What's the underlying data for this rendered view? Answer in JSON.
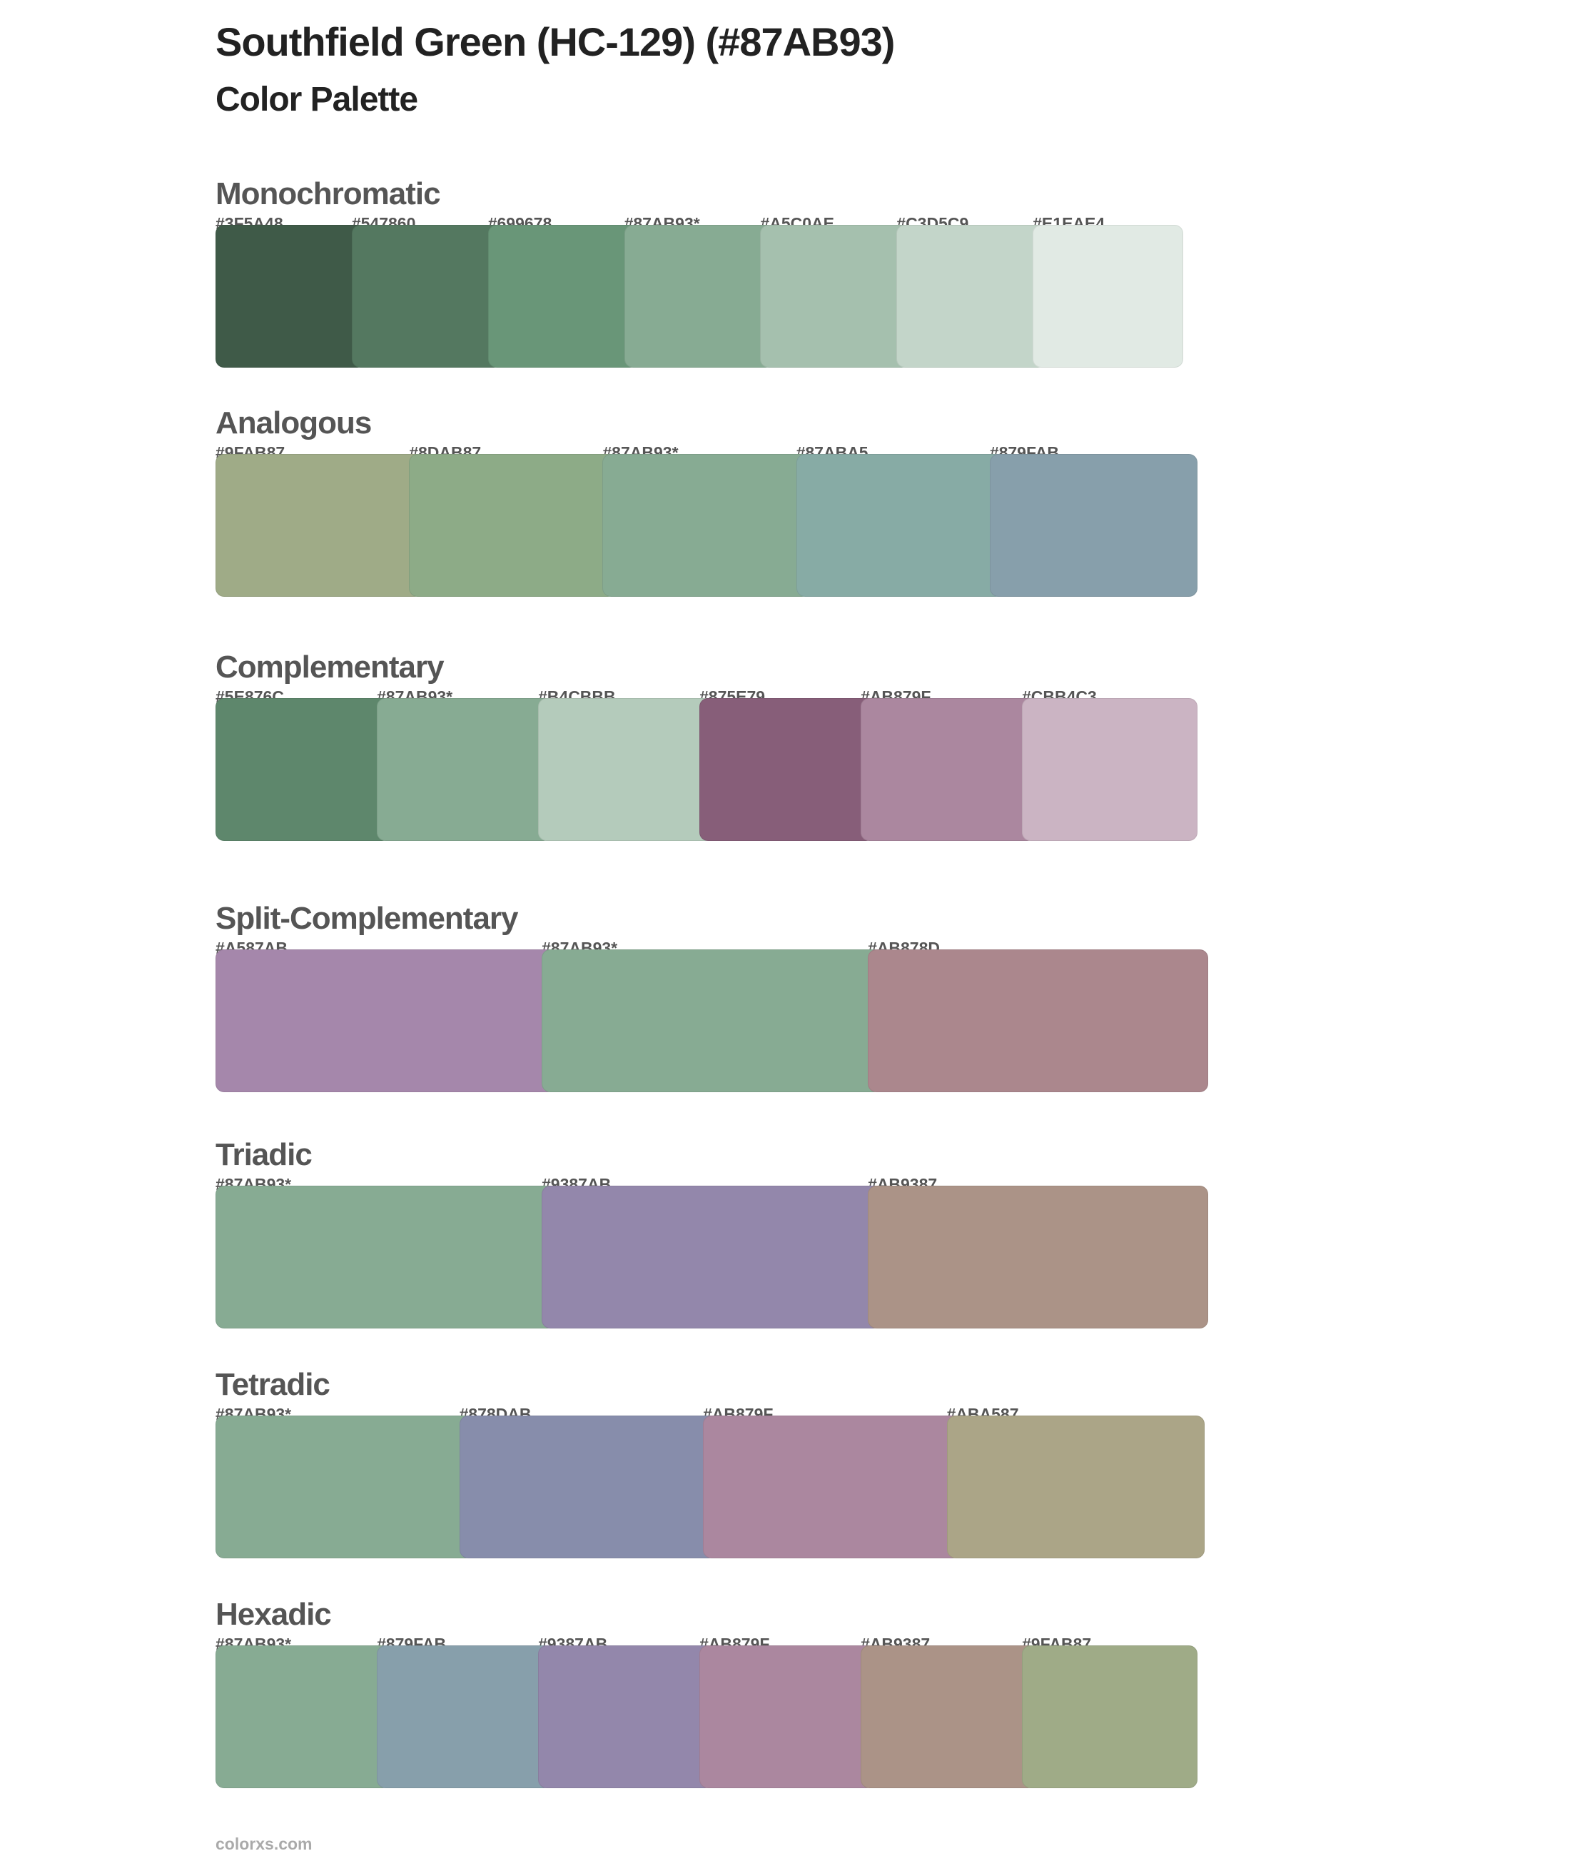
{
  "header": {
    "title": "Southfield Green (HC-129) (#87AB93)",
    "subtitle": "Color Palette"
  },
  "sections": [
    {
      "name": "Monochromatic",
      "colors": [
        {
          "label": "#3F5A48",
          "hex": "#3F5A48"
        },
        {
          "label": "#547860",
          "hex": "#547860"
        },
        {
          "label": "#699678",
          "hex": "#699678"
        },
        {
          "label": "#87AB93*",
          "hex": "#87AB93"
        },
        {
          "label": "#A5C0AE",
          "hex": "#A5C0AE"
        },
        {
          "label": "#C3D5C9",
          "hex": "#C3D5C9"
        },
        {
          "label": "#E1EAE4",
          "hex": "#E1EAE4"
        }
      ]
    },
    {
      "name": "Analogous",
      "colors": [
        {
          "label": "#9FAB87",
          "hex": "#9FAB87"
        },
        {
          "label": "#8DAB87",
          "hex": "#8DAB87"
        },
        {
          "label": "#87AB93*",
          "hex": "#87AB93"
        },
        {
          "label": "#87ABA5",
          "hex": "#87ABA5"
        },
        {
          "label": "#879FAB",
          "hex": "#879FAB"
        }
      ]
    },
    {
      "name": "Complementary",
      "colors": [
        {
          "label": "#5E876C",
          "hex": "#5E876C"
        },
        {
          "label": "#87AB93*",
          "hex": "#87AB93"
        },
        {
          "label": "#B4CBBB",
          "hex": "#B4CBBB"
        },
        {
          "label": "#875E79",
          "hex": "#875E79"
        },
        {
          "label": "#AB879F",
          "hex": "#AB879F"
        },
        {
          "label": "#CBB4C3",
          "hex": "#CBB4C3"
        }
      ]
    },
    {
      "name": "Split-Complementary",
      "colors": [
        {
          "label": "#A587AB",
          "hex": "#A587AB"
        },
        {
          "label": "#87AB93*",
          "hex": "#87AB93"
        },
        {
          "label": "#AB878D",
          "hex": "#AB878D"
        }
      ]
    },
    {
      "name": "Triadic",
      "colors": [
        {
          "label": "#87AB93*",
          "hex": "#87AB93"
        },
        {
          "label": "#9387AB",
          "hex": "#9387AB"
        },
        {
          "label": "#AB9387",
          "hex": "#AB9387"
        }
      ]
    },
    {
      "name": "Tetradic",
      "colors": [
        {
          "label": "#87AB93*",
          "hex": "#87AB93"
        },
        {
          "label": "#878DAB",
          "hex": "#878DAB"
        },
        {
          "label": "#AB879F",
          "hex": "#AB879F"
        },
        {
          "label": "#ABA587",
          "hex": "#ABA587"
        }
      ]
    },
    {
      "name": "Hexadic",
      "colors": [
        {
          "label": "#87AB93*",
          "hex": "#87AB93"
        },
        {
          "label": "#879FAB",
          "hex": "#879FAB"
        },
        {
          "label": "#9387AB",
          "hex": "#9387AB"
        },
        {
          "label": "#AB879F",
          "hex": "#AB879F"
        },
        {
          "label": "#AB9387",
          "hex": "#AB9387"
        },
        {
          "label": "#9FAB87",
          "hex": "#9FAB87"
        }
      ]
    }
  ],
  "footer": {
    "site": "colorxs.com"
  }
}
